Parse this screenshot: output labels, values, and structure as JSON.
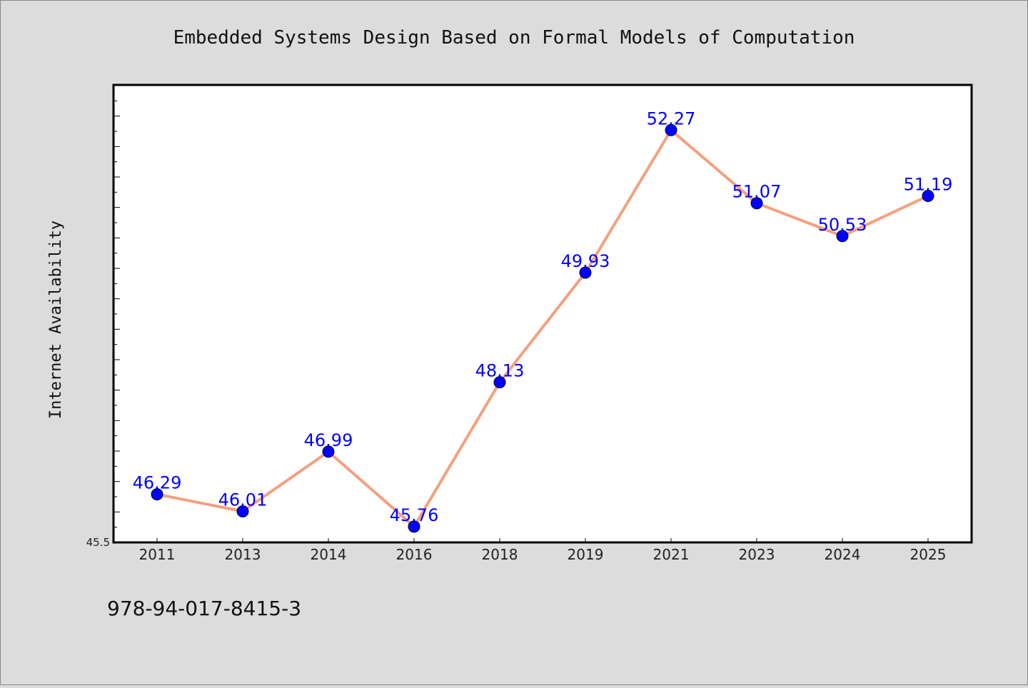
{
  "chart_data": {
    "type": "line",
    "title": "Embedded Systems Design Based on Formal Models of Computation",
    "xlabel": "",
    "ylabel": "Internet Availability",
    "categories": [
      "2011",
      "2013",
      "2014",
      "2016",
      "2018",
      "2019",
      "2021",
      "2023",
      "2024",
      "2025"
    ],
    "series": [
      {
        "values": [
          46.29,
          46.01,
          46.99,
          45.76,
          48.13,
          49.93,
          52.27,
          51.07,
          50.53,
          51.19
        ],
        "data_labels": [
          "46.29",
          "46.01",
          "46.99",
          "45.76",
          "48.13",
          "49.93",
          "52.27",
          "51.07",
          "50.53",
          "51.19"
        ]
      }
    ],
    "ylim": [
      45.5,
      53.0
    ],
    "y_tick_labels": [
      "45.5"
    ],
    "grid": false,
    "legend": "none",
    "colors": {
      "line": "#f4a07f",
      "marker": "#0000ff",
      "label": "#0000ff",
      "background": "#dcdcdc",
      "plot_area": "#ffffff"
    }
  },
  "footer": {
    "isbn": "978-94-017-8415-3"
  }
}
